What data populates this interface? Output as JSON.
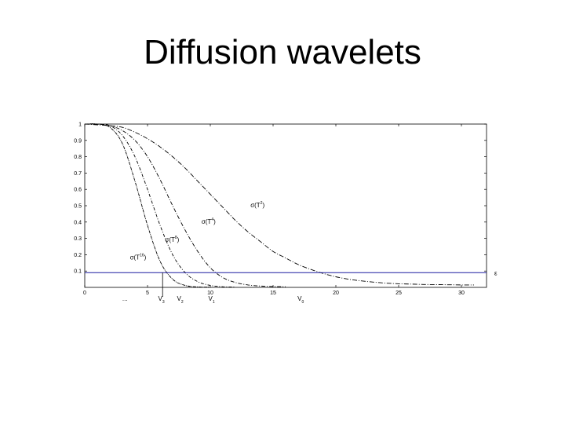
{
  "slide": {
    "title": "Diffusion wavelets"
  },
  "chart_data": {
    "type": "line",
    "title": "",
    "xlabel": "",
    "ylabel": "",
    "xlim": [
      0,
      32
    ],
    "ylim": [
      0,
      1
    ],
    "x_ticks": [
      0,
      5,
      10,
      15,
      20,
      25,
      30
    ],
    "y_ticks": [
      0.1,
      0.2,
      0.3,
      0.4,
      0.5,
      0.6,
      0.7,
      0.8,
      0.9,
      1
    ],
    "grid": false,
    "line_color": "#000000",
    "threshold_color": "#1a1aa0",
    "series": [
      {
        "name": "σ(T^2)",
        "label_base": "σ(T",
        "label_sup": "2",
        "label_end": ")",
        "x": [
          0,
          2,
          3,
          4,
          5,
          6,
          7,
          8,
          9,
          10,
          11,
          12,
          13,
          14,
          15,
          16,
          17,
          18,
          19,
          20,
          21,
          22,
          23,
          24,
          25,
          26,
          27,
          28,
          29,
          30,
          31
        ],
        "y": [
          1.0,
          0.99,
          0.98,
          0.95,
          0.91,
          0.86,
          0.8,
          0.73,
          0.65,
          0.57,
          0.49,
          0.41,
          0.34,
          0.28,
          0.22,
          0.18,
          0.14,
          0.11,
          0.085,
          0.065,
          0.05,
          0.04,
          0.032,
          0.026,
          0.022,
          0.02,
          0.018,
          0.017,
          0.016,
          0.015,
          0.015
        ]
      },
      {
        "name": "σ(T^4)",
        "label_base": "σ(T",
        "label_sup": "4",
        "label_end": ")",
        "x": [
          0,
          1,
          2,
          3,
          4,
          5,
          6,
          7,
          8,
          9,
          10,
          11,
          12,
          13,
          14,
          15,
          16
        ],
        "y": [
          1.0,
          1.0,
          0.99,
          0.96,
          0.9,
          0.8,
          0.66,
          0.5,
          0.35,
          0.22,
          0.12,
          0.06,
          0.03,
          0.015,
          0.008,
          0.005,
          0.004
        ]
      },
      {
        "name": "σ(T^8)",
        "label_base": "σ(T",
        "label_sup": "8",
        "label_end": ")",
        "x": [
          0,
          1,
          2,
          3,
          4,
          5,
          6,
          7,
          8,
          9,
          10,
          11,
          12
        ],
        "y": [
          1.0,
          1.0,
          0.99,
          0.93,
          0.8,
          0.6,
          0.38,
          0.2,
          0.09,
          0.035,
          0.012,
          0.004,
          0.002
        ]
      },
      {
        "name": "σ(T^16)",
        "label_base": "σ(T",
        "label_sup": "16",
        "label_end": ")",
        "x": [
          0,
          1,
          2,
          3,
          4,
          5,
          6,
          7,
          8,
          9,
          10
        ],
        "y": [
          1.0,
          1.0,
          0.98,
          0.88,
          0.65,
          0.38,
          0.16,
          0.05,
          0.012,
          0.003,
          0.001
        ]
      }
    ],
    "threshold": {
      "y": 0.09,
      "label": "ε"
    },
    "annotations": [
      {
        "text": "V",
        "sub": "3",
        "x": 6.1
      },
      {
        "text": "V",
        "sub": "2",
        "x": 7.6
      },
      {
        "text": "V",
        "sub": "1",
        "x": 10.1
      },
      {
        "text": "V",
        "sub": "0",
        "x": 17.2
      },
      {
        "text": "...",
        "sub": "",
        "x": 3.2
      }
    ],
    "cut_line_x": 6.2
  }
}
